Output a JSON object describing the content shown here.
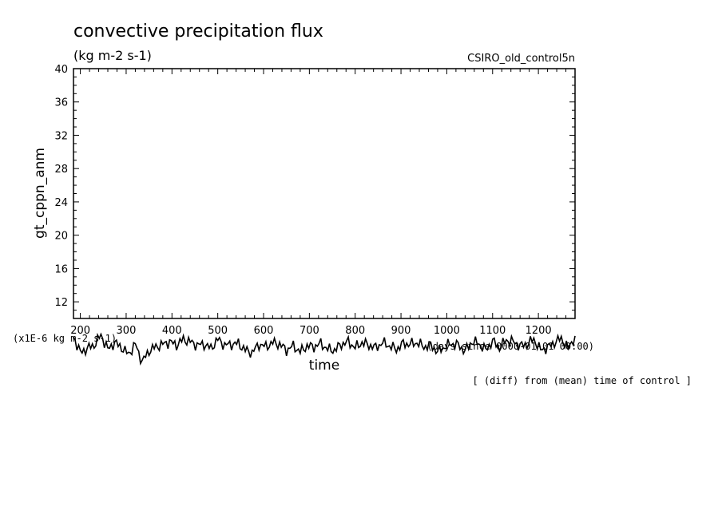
{
  "chart_data": {
    "type": "line",
    "title": "convective precipitation flux",
    "units": "(kg m-2 s-1)",
    "run_label": "CSIRO_old_control5n",
    "ylabel": "gt_cppn_anm",
    "xlabel": "time",
    "x_units": "(days since 0000-01-01 00:00)",
    "y_scale_note": "(x1E-6 kg m-2 s-1)",
    "diff_note": "[ (diff) from (mean) time of control ]",
    "xlim": [
      185,
      1280
    ],
    "ylim": [
      10,
      40
    ],
    "x_ticks": [
      200,
      300,
      400,
      500,
      600,
      700,
      800,
      900,
      1000,
      1100,
      1200
    ],
    "x_tick_labels": [
      "200",
      "300",
      "400",
      "500",
      "600",
      "700",
      "800",
      "900",
      "1000",
      "1100",
      "1200"
    ],
    "y_ticks": [
      12,
      16,
      20,
      24,
      28,
      32,
      36,
      40
    ],
    "y_tick_labels": [
      "12",
      "16",
      "20",
      "24",
      "28",
      "32",
      "36",
      "40"
    ],
    "grid": false,
    "series": [
      {
        "x": [
          185,
          200,
          215,
          230,
          245,
          260,
          275,
          290,
          305,
          320,
          335,
          350,
          365,
          380,
          395,
          410,
          425,
          440,
          455,
          470,
          485,
          500,
          515,
          530,
          545,
          560,
          575,
          590,
          605,
          620,
          635,
          650,
          665,
          680,
          695,
          710,
          725,
          740,
          755,
          770,
          785,
          800,
          815,
          830,
          845,
          860,
          875,
          890,
          905,
          920,
          935,
          950,
          965,
          980,
          995,
          1010,
          1025,
          1040,
          1055,
          1070,
          1085,
          1100,
          1115,
          1130,
          1145,
          1160,
          1175,
          1190,
          1205,
          1220,
          1235,
          1250,
          1265,
          1280
        ],
        "values": [
          7.8,
          5.9,
          6.4,
          6.8,
          8.0,
          6.3,
          7.1,
          6.5,
          5.7,
          6.9,
          4.8,
          6.1,
          6.6,
          6.9,
          7.2,
          6.8,
          7.5,
          7.2,
          6.8,
          6.9,
          6.4,
          7.5,
          6.8,
          6.9,
          7.0,
          6.2,
          5.9,
          6.9,
          6.6,
          7.1,
          6.9,
          6.2,
          6.7,
          6.0,
          6.7,
          6.6,
          7.0,
          6.3,
          6.2,
          6.9,
          7.2,
          6.5,
          7.1,
          6.8,
          6.5,
          7.1,
          6.7,
          6.3,
          7.0,
          6.9,
          7.1,
          6.6,
          6.8,
          6.0,
          6.6,
          7.0,
          6.8,
          6.1,
          7.2,
          7.0,
          6.2,
          7.3,
          6.5,
          7.4,
          7.2,
          6.7,
          6.9,
          7.5,
          6.2,
          6.5,
          7.1,
          7.6,
          6.4,
          7.9
        ]
      }
    ]
  }
}
